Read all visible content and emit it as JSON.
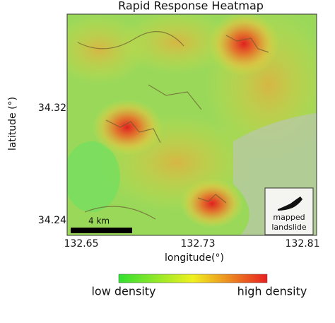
{
  "title": "Rapid Response Heatmap",
  "axes": {
    "y_label": "latitude (°)",
    "x_label": "longitude(°)",
    "y_ticks": [
      34.32,
      34.24
    ],
    "x_ticks": [
      132.65,
      132.73,
      132.81
    ]
  },
  "scale_bar": "4 km",
  "legend": {
    "line1": "mapped",
    "line2": "landslide"
  },
  "colorbar": {
    "low": "low density",
    "high": "high density"
  }
}
